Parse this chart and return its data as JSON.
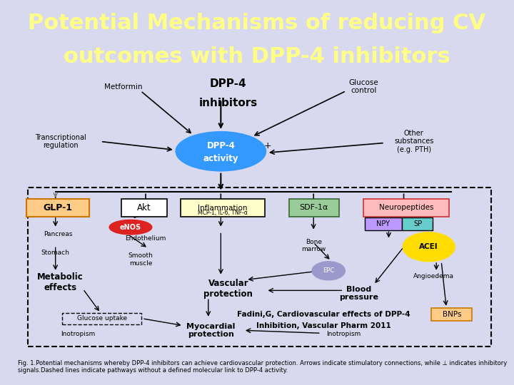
{
  "title_line1": "Potential Mechanisms of reducing CV",
  "title_line2": "outcomes with DPP-4 inhibitors",
  "title_bg_color": "#1a1a9e",
  "title_text_color": "#ffff88",
  "title_font_size": 22,
  "body_bg_color": "#d8d8ee",
  "diagram_bg": "#ffffff",
  "sidebar_color": "#1a1a9e",
  "citation_line1": "Fadini,G, Cardiovascular effects of DPP-4",
  "citation_line2": "Inhibition, Vascular Pharm 2011",
  "fig_caption": "Fig. 1.Potential mechanisms whereby DPP-4 inhibitors can achieve cardiovascular protection. Arrows indicate stimulatory connections, while ⊥ indicates inhibitory signals.Dashed lines indicate pathways without a defined molecular link to DPP-4 activity.",
  "dpp4_circle_color": "#3399ff",
  "glp1_face": "#ffcc88",
  "glp1_edge": "#cc7700",
  "sdf_face": "#99cc99",
  "sdf_edge": "#336633",
  "neuro_face": "#ffbbbb",
  "neuro_edge": "#cc3333",
  "npy_face": "#bb99ff",
  "sp_face": "#66cccc",
  "acei_face": "#ffdd00",
  "bnp_face": "#ffcc88",
  "bnp_edge": "#cc7700",
  "infl_face": "#ffffcc",
  "epc_face": "#9999cc",
  "enos_face": "#dd2222"
}
